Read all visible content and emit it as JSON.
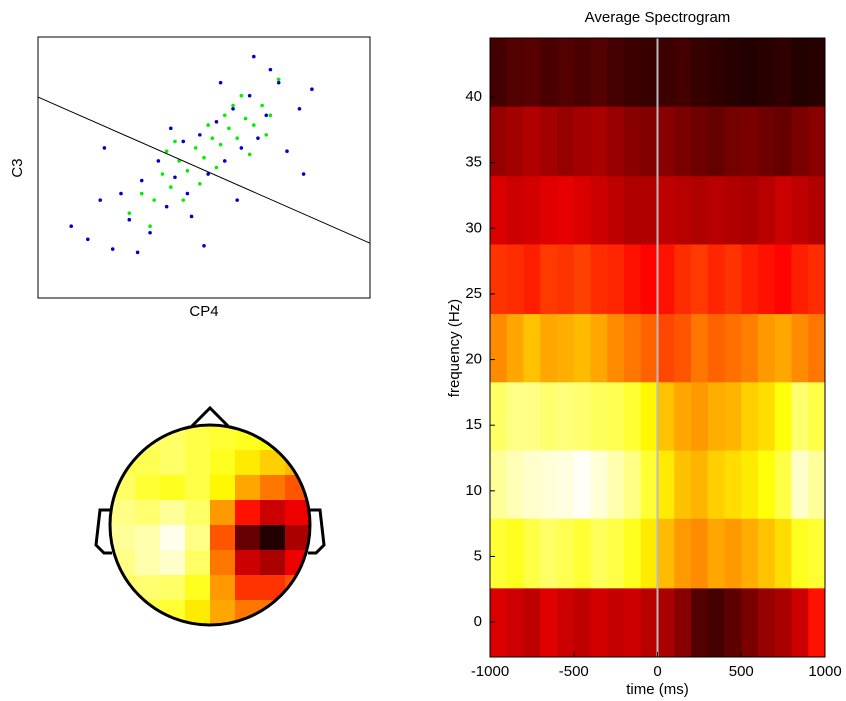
{
  "chart_data": [
    {
      "type": "scatter",
      "xlabel": "CP4",
      "ylabel": "C3",
      "xlim": [
        -4,
        4
      ],
      "ylim": [
        -4,
        4
      ],
      "series": [
        {
          "color": "#0000cc",
          "x": [
            -3.2,
            -2.8,
            -2.5,
            -2.2,
            -2.0,
            -1.8,
            -1.5,
            -1.3,
            -1.1,
            -0.9,
            -0.7,
            -0.5,
            -0.3,
            -0.1,
            0.1,
            0.3,
            0.5,
            0.7,
            0.9,
            1.1,
            1.3,
            1.5,
            1.8,
            2.0,
            2.3,
            2.6,
            -1.6,
            -0.8,
            0.0,
            0.8,
            1.6,
            -2.4,
            2.4,
            -0.4,
            0.4,
            1.2
          ],
          "values": [
            -1.8,
            -2.2,
            -1.0,
            -2.5,
            -0.8,
            -1.6,
            -0.4,
            -2.0,
            0.2,
            -1.2,
            -0.3,
            0.8,
            -1.5,
            1.0,
            -0.2,
            1.4,
            0.2,
            1.8,
            0.6,
            2.2,
            0.9,
            1.6,
            2.6,
            0.5,
            1.8,
            2.4,
            -2.6,
            1.2,
            -2.4,
            -1.0,
            3.0,
            0.6,
            -0.2,
            -0.8,
            2.6,
            3.4
          ]
        },
        {
          "color": "#00ee00",
          "x": [
            -1.8,
            -1.5,
            -1.2,
            -1.0,
            -0.8,
            -0.6,
            -0.4,
            -0.2,
            0.0,
            0.2,
            0.4,
            0.6,
            0.8,
            1.0,
            1.2,
            1.4,
            1.6,
            -1.3,
            -0.7,
            -0.1,
            0.5,
            1.1,
            -0.9,
            0.3,
            0.9,
            1.5,
            -0.5,
            0.7,
            0.1,
            1.8
          ],
          "values": [
            -1.4,
            -0.8,
            -1.0,
            -0.2,
            -0.6,
            0.2,
            -0.1,
            0.6,
            0.3,
            0.9,
            0.7,
            1.2,
            0.9,
            1.5,
            1.3,
            1.9,
            1.6,
            -1.8,
            0.8,
            -0.5,
            1.6,
            0.4,
            0.5,
            0.0,
            2.2,
            1.0,
            -1.0,
            1.9,
            1.3,
            2.7
          ]
        }
      ],
      "decision_line": {
        "color": "#000000",
        "x": [
          -4,
          4
        ],
        "values": [
          2.16,
          -2.32
        ]
      }
    },
    {
      "type": "topoplot",
      "colormap": "hot",
      "zlim": [
        0,
        1
      ],
      "z": [
        [
          0.85,
          0.85,
          0.85,
          0.82,
          0.8,
          0.78,
          0.75,
          0.72
        ],
        [
          0.82,
          0.83,
          0.85,
          0.82,
          0.78,
          0.72,
          0.68,
          0.65
        ],
        [
          0.85,
          0.8,
          0.78,
          0.82,
          0.74,
          0.62,
          0.55,
          0.5
        ],
        [
          0.88,
          0.86,
          0.9,
          0.85,
          0.6,
          0.4,
          0.3,
          0.35
        ],
        [
          0.9,
          0.92,
          0.98,
          0.88,
          0.5,
          0.15,
          0.05,
          0.25
        ],
        [
          0.88,
          0.92,
          0.95,
          0.85,
          0.55,
          0.3,
          0.25,
          0.35
        ],
        [
          0.85,
          0.86,
          0.85,
          0.78,
          0.6,
          0.45,
          0.45,
          0.5
        ],
        [
          0.82,
          0.82,
          0.8,
          0.72,
          0.62,
          0.55,
          0.55,
          0.58
        ]
      ]
    },
    {
      "type": "heatmap",
      "title": "Average Spectrogram",
      "xlabel": "time (ms)",
      "ylabel": "frequency (Hz)",
      "colormap": "hot",
      "zlim": [
        0,
        1
      ],
      "xlim": [
        -1000,
        1000
      ],
      "ylim": [
        -2.66,
        44.5
      ],
      "xticks": [
        -1000,
        -500,
        0,
        500,
        1000
      ],
      "yticks": [
        0,
        5,
        10,
        15,
        20,
        25,
        30,
        35,
        40
      ],
      "x_edges": [
        -1000,
        -900,
        -800,
        -700,
        -600,
        -500,
        -400,
        -300,
        -200,
        -100,
        0,
        100,
        200,
        300,
        400,
        500,
        600,
        700,
        800,
        900,
        1000
      ],
      "y_edges": [
        -2.66,
        2.6,
        7.9,
        13.1,
        18.3,
        23.5,
        28.8,
        34,
        39.3,
        44.5
      ],
      "marker_x": 0,
      "marker_color": "#bbbbbb",
      "z": [
        [
          0.32,
          0.3,
          0.28,
          0.33,
          0.3,
          0.28,
          0.31,
          0.29,
          0.3,
          0.27,
          0.25,
          0.2,
          0.12,
          0.1,
          0.14,
          0.18,
          0.22,
          0.25,
          0.3,
          0.4
        ],
        [
          0.8,
          0.78,
          0.82,
          0.85,
          0.83,
          0.8,
          0.84,
          0.82,
          0.78,
          0.72,
          0.65,
          0.6,
          0.58,
          0.62,
          0.6,
          0.63,
          0.66,
          0.7,
          0.78,
          0.8
        ],
        [
          0.9,
          0.93,
          0.95,
          0.96,
          0.97,
          0.99,
          0.96,
          0.92,
          0.88,
          0.8,
          0.72,
          0.66,
          0.64,
          0.68,
          0.7,
          0.72,
          0.76,
          0.82,
          0.95,
          0.9
        ],
        [
          0.85,
          0.88,
          0.88,
          0.86,
          0.87,
          0.86,
          0.84,
          0.83,
          0.8,
          0.74,
          0.66,
          0.62,
          0.6,
          0.63,
          0.64,
          0.68,
          0.7,
          0.76,
          0.86,
          0.82
        ],
        [
          0.58,
          0.62,
          0.66,
          0.62,
          0.63,
          0.65,
          0.62,
          0.58,
          0.55,
          0.52,
          0.48,
          0.5,
          0.55,
          0.52,
          0.54,
          0.56,
          0.6,
          0.62,
          0.58,
          0.55
        ],
        [
          0.45,
          0.44,
          0.42,
          0.46,
          0.45,
          0.47,
          0.44,
          0.43,
          0.4,
          0.38,
          0.4,
          0.44,
          0.46,
          0.43,
          0.45,
          0.42,
          0.4,
          0.38,
          0.42,
          0.44
        ],
        [
          0.32,
          0.3,
          0.31,
          0.33,
          0.34,
          0.32,
          0.3,
          0.28,
          0.26,
          0.26,
          0.28,
          0.27,
          0.26,
          0.27,
          0.26,
          0.25,
          0.27,
          0.3,
          0.28,
          0.26
        ],
        [
          0.22,
          0.24,
          0.26,
          0.24,
          0.22,
          0.24,
          0.25,
          0.22,
          0.2,
          0.19,
          0.2,
          0.18,
          0.16,
          0.15,
          0.17,
          0.18,
          0.16,
          0.15,
          0.18,
          0.2
        ],
        [
          0.1,
          0.12,
          0.13,
          0.11,
          0.12,
          0.11,
          0.12,
          0.1,
          0.09,
          0.08,
          0.09,
          0.1,
          0.08,
          0.07,
          0.06,
          0.05,
          0.06,
          0.07,
          0.05,
          0.06
        ]
      ]
    }
  ]
}
